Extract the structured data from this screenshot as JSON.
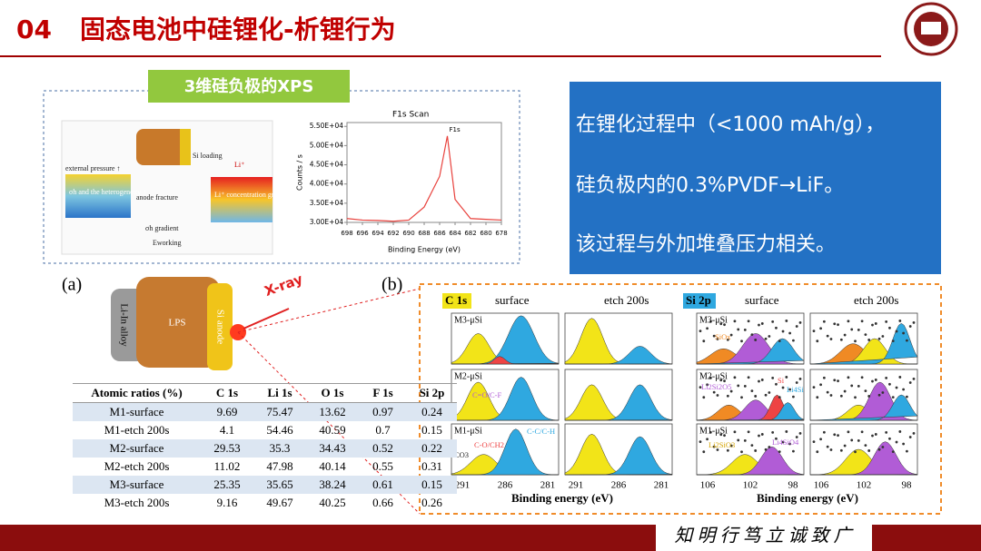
{
  "header": {
    "number": "04",
    "title": "固态电池中硅锂化-析锂行为"
  },
  "xps_panel": {
    "label": "3维硅负极的XPS",
    "schematic": [
      "external pressure ↑",
      "σh and the heterogeneity ↑",
      "anode fracture",
      "Si loading",
      "Li⁺",
      "Li⁺ concentration gradient ↑",
      "σh gradient",
      "Eworking"
    ]
  },
  "chart_data": {
    "type": "line",
    "title": "F1s Scan",
    "x_label": "Binding Energy (eV)",
    "y_label": "Counts / s",
    "annotation": "F1s",
    "x": [
      698,
      696,
      694,
      692,
      690,
      688,
      687,
      686,
      685,
      684,
      682,
      680,
      678
    ],
    "values": [
      31000,
      30600,
      30500,
      30300,
      30600,
      34000,
      38000,
      42000,
      52500,
      36000,
      31000,
      30800,
      30600
    ],
    "color": "#e8413c",
    "xlim": [
      698,
      678
    ],
    "ylim": [
      30000,
      56000
    ],
    "xticks": [
      698,
      696,
      694,
      692,
      690,
      688,
      686,
      684,
      682,
      680,
      678
    ],
    "yticks": [
      {
        "value": 30000,
        "label": "3.00E+04"
      },
      {
        "value": 35000,
        "label": "3.50E+04"
      },
      {
        "value": 40000,
        "label": "4.00E+04"
      },
      {
        "value": 45000,
        "label": "4.50E+04"
      },
      {
        "value": 50000,
        "label": "5.00E+04"
      },
      {
        "value": 55000,
        "label": "5.50E+04"
      }
    ]
  },
  "callout": {
    "lines": [
      "在锂化过程中（<1000 mAh/g），",
      "硅负极内的0.3%PVDF→LiF。",
      "该过程与外加堆叠压力相关。"
    ]
  },
  "figure_a": {
    "label": "(a)",
    "xray": "X-ray",
    "layers": [
      "Li-In alloy",
      "LPS",
      "Si anode"
    ]
  },
  "table": {
    "header": [
      "Atomic ratios (%)",
      "C 1s",
      "Li 1s",
      "O 1s",
      "F 1s",
      "Si 2p"
    ],
    "rows": [
      [
        "M1-surface",
        9.69,
        75.47,
        13.62,
        0.97,
        0.24
      ],
      [
        "M1-etch 200s",
        4.1,
        54.46,
        40.59,
        0.7,
        0.15
      ],
      [
        "M2-surface",
        29.53,
        35.3,
        34.43,
        0.52,
        0.22
      ],
      [
        "M2-etch 200s",
        11.02,
        47.98,
        40.14,
        0.55,
        0.31
      ],
      [
        "M3-surface",
        25.35,
        35.65,
        38.24,
        0.61,
        0.15
      ],
      [
        "M3-etch 200s",
        9.16,
        49.67,
        40.25,
        0.66,
        0.26
      ]
    ]
  },
  "figure_b": {
    "label": "(b)",
    "c1s": {
      "title": "C 1s",
      "columns": [
        "surface",
        "etch 200s"
      ],
      "samples": [
        "M3-μSi",
        "M2-μSi",
        "M1-μSi"
      ],
      "annotations": [
        "C=O/C-F",
        "C-C/C-H",
        "CO3",
        "C-O/CH2"
      ],
      "xticks": [
        "291",
        "286",
        "281",
        "291",
        "286",
        "281"
      ],
      "x_label": "Binding energy (eV)"
    },
    "si2p": {
      "title": "Si 2p",
      "columns": [
        "surface",
        "etch 200s"
      ],
      "samples": [
        "M3-μSi",
        "M2-μSi",
        "M1-μSi"
      ],
      "annotations": [
        "SiOx",
        "Li2Si2O5",
        "Si",
        "Li4Si",
        "Li2SiO3",
        "Li4SiO4"
      ],
      "xticks": [
        "106",
        "102",
        "98",
        "106",
        "102",
        "98"
      ],
      "x_label": "Binding energy (eV)"
    }
  },
  "footer": {
    "motto": "知 明 行 笃   立 诚 致 广"
  }
}
